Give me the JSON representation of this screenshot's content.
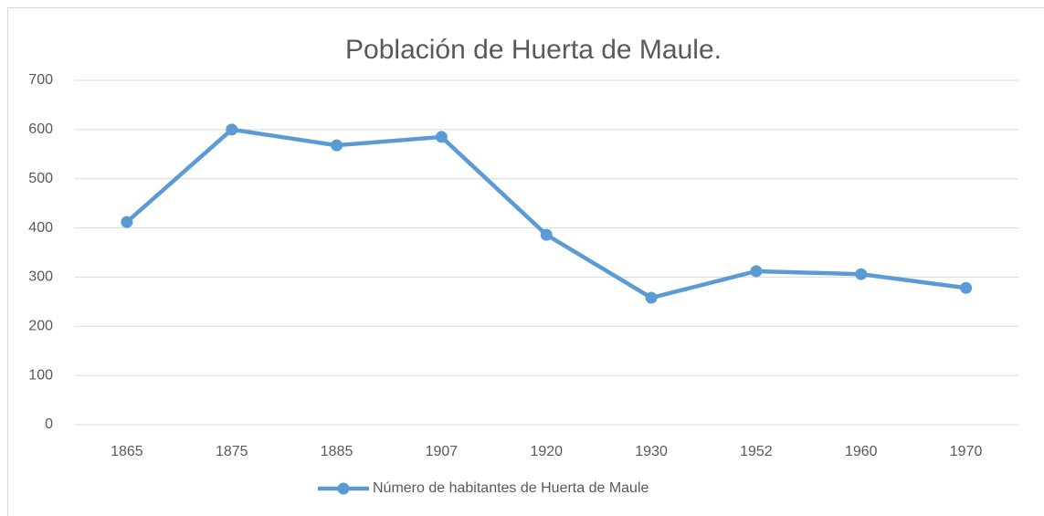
{
  "chart_data": {
    "type": "line",
    "title": "Población de Huerta de Maule.",
    "categories": [
      "1865",
      "1875",
      "1885",
      "1907",
      "1920",
      "1930",
      "1952",
      "1960",
      "1970"
    ],
    "series": [
      {
        "name": "Número de habitantes de Huerta de Maule",
        "color": "#5b9bd5",
        "values": [
          412,
          600,
          568,
          585,
          386,
          258,
          312,
          306,
          278
        ]
      }
    ],
    "ylim": [
      0,
      700
    ],
    "yticks": [
      0,
      100,
      200,
      300,
      400,
      500,
      600,
      700
    ],
    "grid": true,
    "legend": "bottom"
  }
}
